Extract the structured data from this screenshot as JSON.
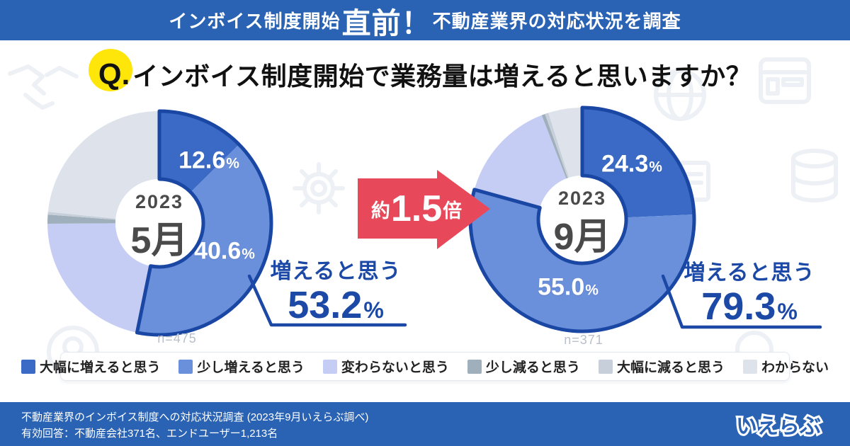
{
  "banner": {
    "prefix": "インボイス制度開始",
    "emphasis": "直前！",
    "suffix": "不動産業界の対応状況を調査"
  },
  "question": {
    "q": "Q.",
    "text": "インボイス制度開始で業務量は増えると思いますか？"
  },
  "chart_data": [
    {
      "type": "pie",
      "donut": true,
      "title": "2023年5月",
      "center_year": "2023",
      "center_month": "5月",
      "n_label": "n=475",
      "categories": [
        "大幅に増えると思う",
        "少し増えると思う",
        "変わらないと思う",
        "少し減ると思う",
        "大幅に減ると思う",
        "わからない"
      ],
      "values": [
        12.6,
        40.6,
        21.7,
        1.3,
        0.4,
        23.4
      ],
      "slice_labels": [
        {
          "value": "12.6",
          "unit": "%"
        },
        {
          "value": "40.6",
          "unit": "%"
        }
      ],
      "callout": {
        "label": "増えると思う",
        "value": "53.2",
        "unit": "%"
      }
    },
    {
      "type": "pie",
      "donut": true,
      "title": "2023年9月",
      "center_year": "2023",
      "center_month": "9月",
      "n_label": "n=371",
      "categories": [
        "大幅に増えると思う",
        "少し増えると思う",
        "変わらないと思う",
        "少し減ると思う",
        "大幅に減ると思う",
        "わからない"
      ],
      "values": [
        24.3,
        55.0,
        14.8,
        0.5,
        0.5,
        4.9
      ],
      "slice_labels": [
        {
          "value": "24.3",
          "unit": "%"
        },
        {
          "value": "55.0",
          "unit": "%"
        }
      ],
      "callout": {
        "label": "増えると思う",
        "value": "79.3",
        "unit": "%"
      }
    }
  ],
  "arrow": {
    "prefix": "約",
    "value": "1.5",
    "suffix": "倍"
  },
  "legend": {
    "items": [
      {
        "label": "大幅に増えると思う",
        "color": "#3a6ac5"
      },
      {
        "label": "少し増えると思う",
        "color": "#6b90db"
      },
      {
        "label": "変わらないと思う",
        "color": "#c5cdf5"
      },
      {
        "label": "少し減ると思う",
        "color": "#9fafbb"
      },
      {
        "label": "大幅に減ると思う",
        "color": "#c7d0da"
      },
      {
        "label": "わからない",
        "color": "#dee3eb"
      }
    ]
  },
  "footer": {
    "line1": "不動産業界のインボイス制度への対応状況調査 (2023年9月いえらぶ調べ)",
    "line2": "有効回答：不動産会社371名、エンドユーザー1,213名",
    "logo": "いえらぶ"
  },
  "colors": {
    "banner_blue": "#2a63b4",
    "outline_navy": "#1a47a3",
    "callout_text": "#1c48a6",
    "arrow_red": "#e8495a",
    "highlight_yellow": "#ffe60a",
    "center_text": "#4a4a4a",
    "n_label_gray": "#b8bfca",
    "slice_colors": [
      "#3a6ac5",
      "#6b90db",
      "#c5cdf5",
      "#9fafbb",
      "#c7d0da",
      "#dee3eb"
    ]
  },
  "icons": {
    "watermarks": [
      "browser-icon",
      "globe-icon",
      "gear-icon",
      "database-icon",
      "lightbulb-icon",
      "document-icon",
      "circle-icon"
    ]
  }
}
